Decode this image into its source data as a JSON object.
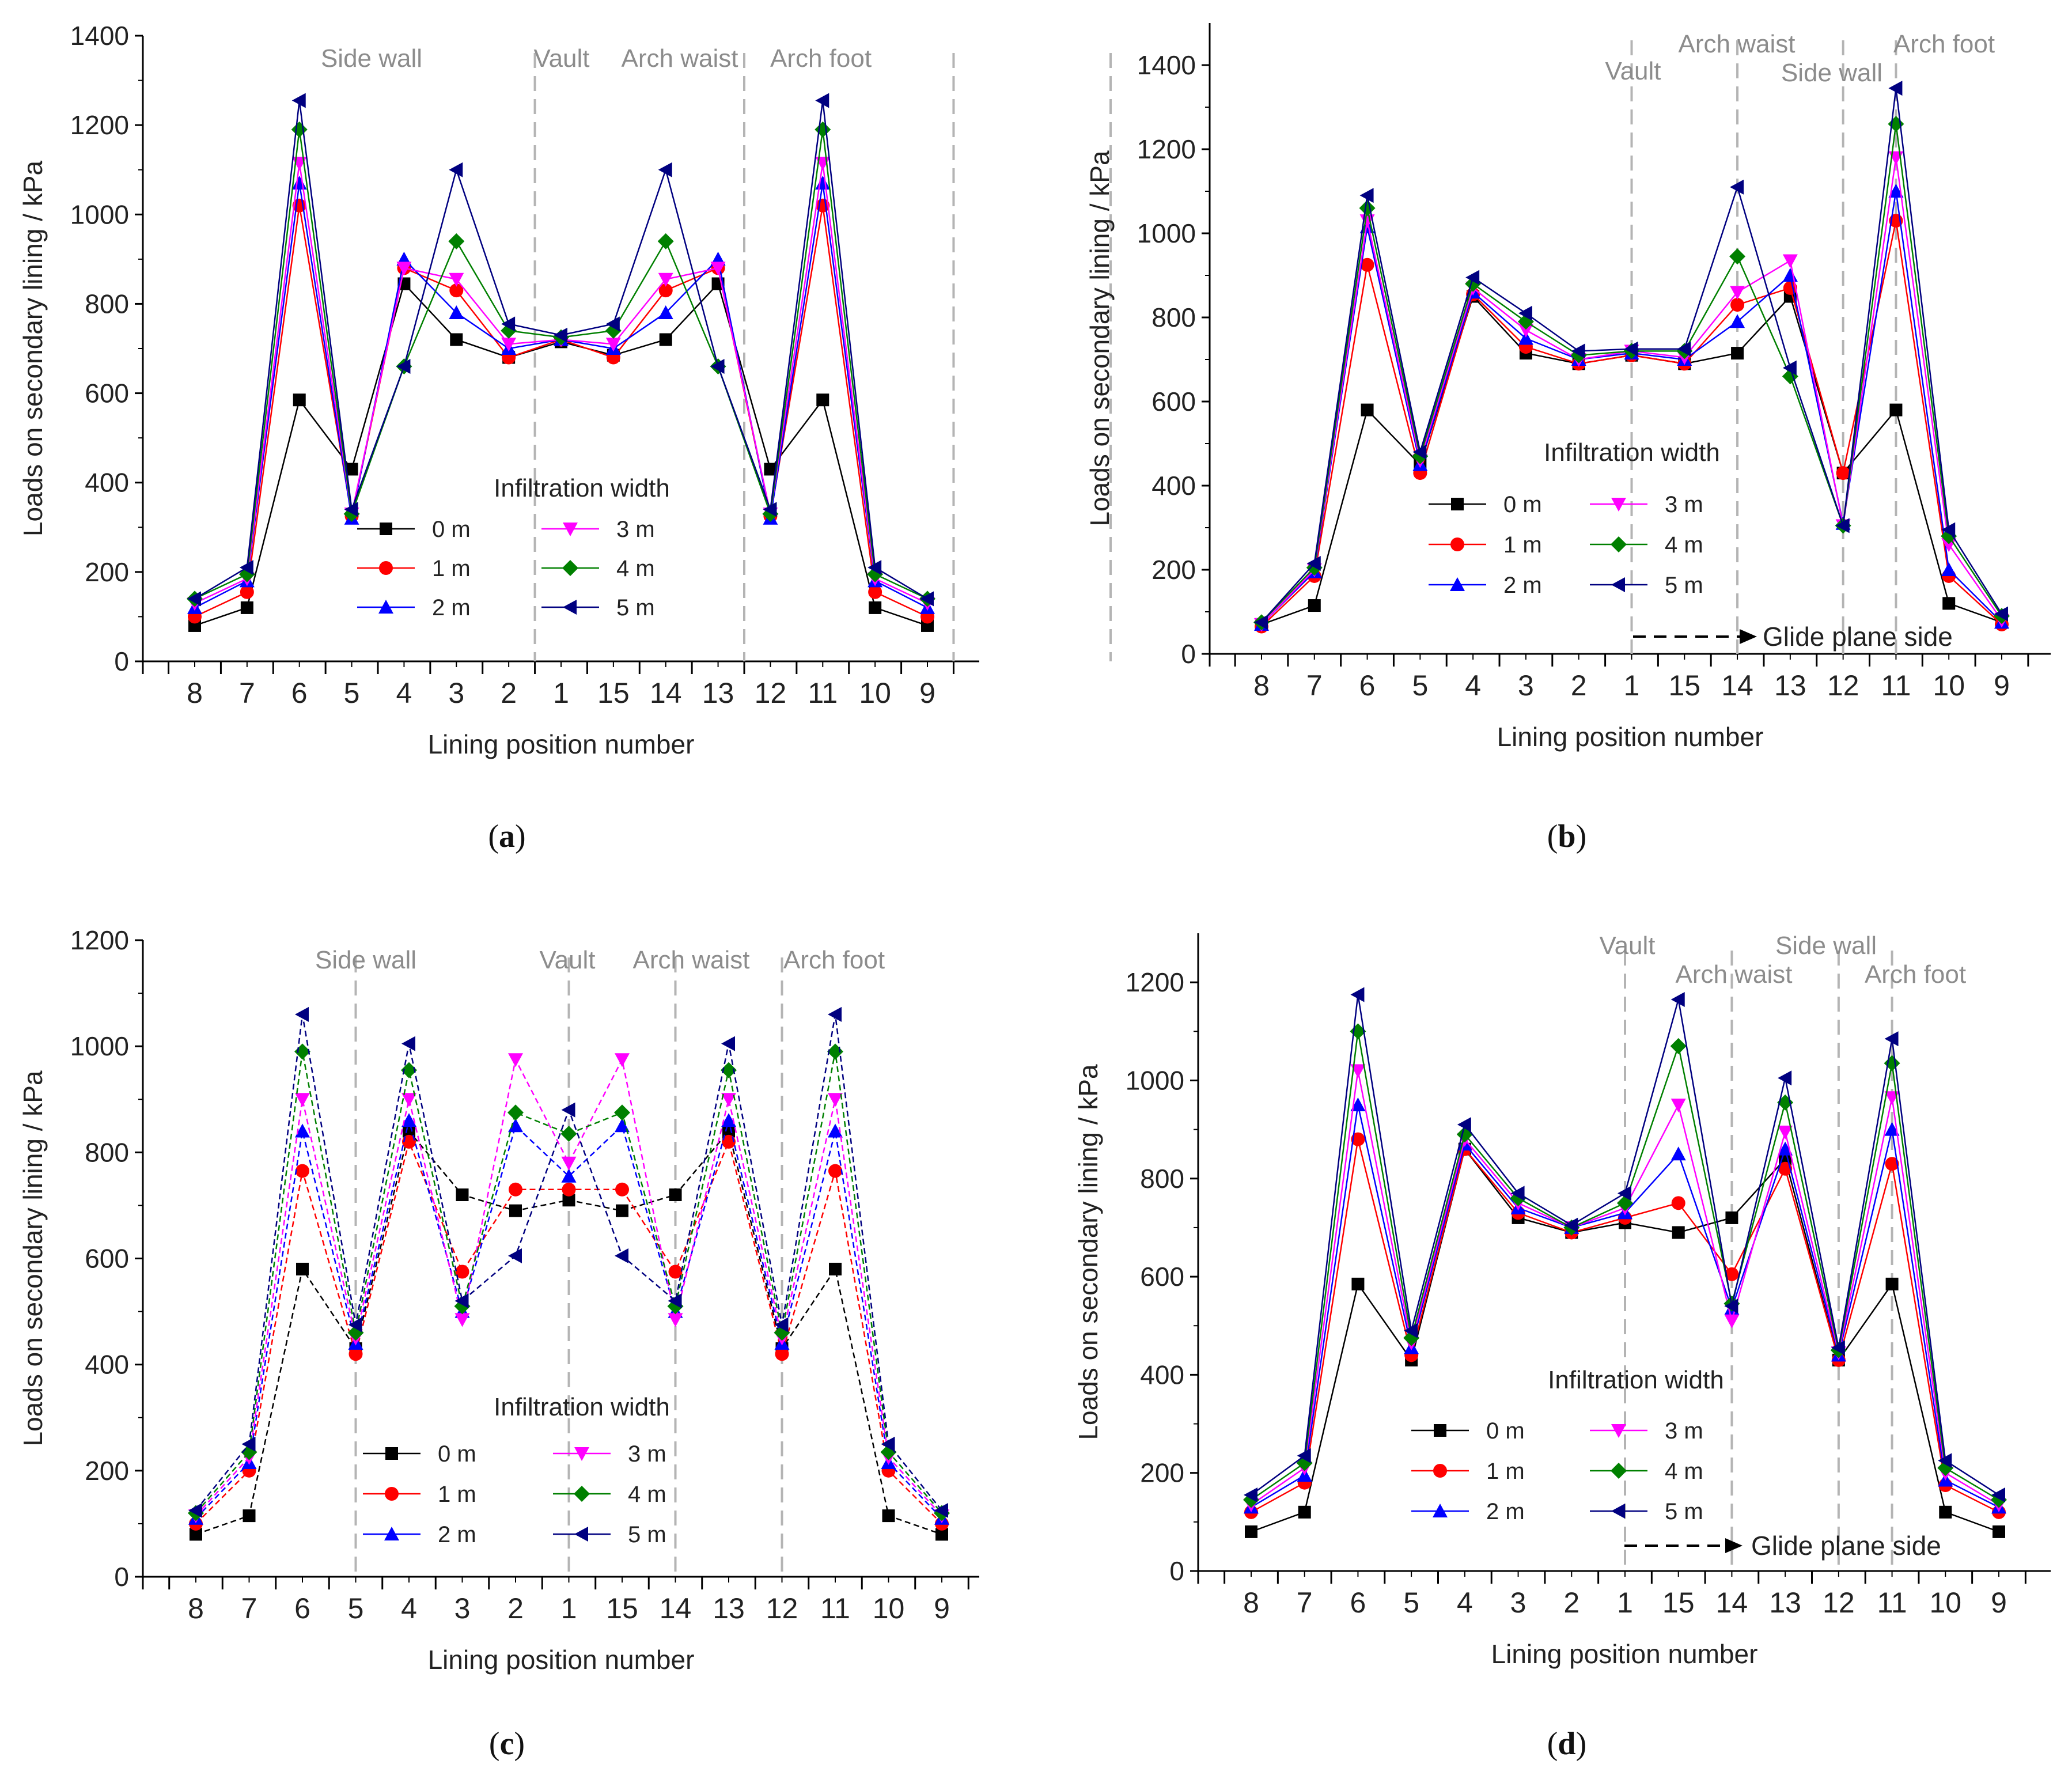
{
  "figure": {
    "x_axis_title": "Lining position number",
    "y_axis_title": "Loads on secondary lining / kPa",
    "legend_title": "Infiltration width",
    "colors": {
      "0 m": "#000000",
      "1 m": "#ff0000",
      "2 m": "#0000ff",
      "3 m": "#ff00ff",
      "4 m": "#008000",
      "5 m": "#000080",
      "guide": "#b4b4b4",
      "region_text": "#8c8c8c"
    },
    "markers": {
      "0 m": "square",
      "1 m": "circle",
      "2 m": "triangle-up",
      "3 m": "triangle-down",
      "4 m": "diamond",
      "5 m": "triangle-left"
    }
  },
  "chart_data": [
    {
      "type": "line",
      "panel": "a",
      "caption": "(a)",
      "categories": [
        "8",
        "7",
        "6",
        "5",
        "4",
        "3",
        "2",
        "1",
        "15",
        "14",
        "13",
        "12",
        "11",
        "10",
        "9"
      ],
      "ylim": [
        0,
        1400
      ],
      "yticks": [
        0,
        200,
        400,
        600,
        800,
        1000,
        1200,
        1400
      ],
      "region_labels": [
        "Side wall",
        "Vault",
        "Arch waist",
        "Arch foot"
      ],
      "annotation": "",
      "series": [
        {
          "name": "0 m",
          "values": [
            80,
            120,
            585,
            430,
            845,
            720,
            680,
            715,
            685,
            720,
            845,
            430,
            585,
            120,
            80
          ]
        },
        {
          "name": "1 m",
          "values": [
            100,
            155,
            1020,
            325,
            880,
            830,
            680,
            720,
            680,
            830,
            880,
            325,
            1020,
            155,
            100
          ]
        },
        {
          "name": "2 m",
          "values": [
            120,
            180,
            1070,
            320,
            900,
            780,
            700,
            720,
            700,
            780,
            900,
            320,
            1070,
            180,
            120
          ]
        },
        {
          "name": "3 m",
          "values": [
            130,
            185,
            1115,
            330,
            880,
            855,
            710,
            720,
            710,
            855,
            880,
            330,
            1115,
            185,
            130
          ]
        },
        {
          "name": "4 m",
          "values": [
            140,
            195,
            1190,
            330,
            660,
            940,
            740,
            725,
            740,
            940,
            660,
            330,
            1190,
            195,
            140
          ]
        },
        {
          "name": "5 m",
          "values": [
            140,
            210,
            1255,
            340,
            660,
            1100,
            755,
            730,
            755,
            1100,
            660,
            340,
            1255,
            210,
            140
          ]
        }
      ]
    },
    {
      "type": "line",
      "panel": "b",
      "caption": "(b)",
      "categories": [
        "8",
        "7",
        "6",
        "5",
        "4",
        "3",
        "2",
        "1",
        "15",
        "14",
        "13",
        "12",
        "11",
        "10",
        "9"
      ],
      "ylim": [
        0,
        1500
      ],
      "yticks": [
        0,
        200,
        400,
        600,
        800,
        1000,
        1200,
        1400
      ],
      "region_labels": [
        "Vault",
        "Arch waist",
        "Side wall",
        "Arch foot"
      ],
      "annotation": "Glide plane side",
      "series": [
        {
          "name": "0 m",
          "values": [
            70,
            115,
            580,
            450,
            850,
            715,
            690,
            710,
            690,
            715,
            850,
            430,
            580,
            120,
            75
          ]
        },
        {
          "name": "1 m",
          "values": [
            65,
            185,
            925,
            430,
            855,
            730,
            690,
            710,
            690,
            830,
            870,
            430,
            1030,
            185,
            70
          ]
        },
        {
          "name": "2 m",
          "values": [
            70,
            195,
            1015,
            450,
            860,
            750,
            700,
            715,
            700,
            790,
            900,
            310,
            1100,
            200,
            75
          ]
        },
        {
          "name": "3 m",
          "values": [
            70,
            200,
            1030,
            460,
            870,
            770,
            700,
            720,
            705,
            860,
            935,
            305,
            1180,
            260,
            80
          ]
        },
        {
          "name": "4 m",
          "values": [
            75,
            205,
            1060,
            470,
            880,
            790,
            710,
            720,
            720,
            945,
            660,
            305,
            1260,
            280,
            90
          ]
        },
        {
          "name": "5 m",
          "values": [
            75,
            215,
            1090,
            480,
            895,
            810,
            720,
            725,
            725,
            1110,
            680,
            305,
            1345,
            295,
            95
          ]
        }
      ]
    },
    {
      "type": "line",
      "panel": "c",
      "caption": "(c)",
      "categories": [
        "8",
        "7",
        "6",
        "5",
        "4",
        "3",
        "2",
        "1",
        "15",
        "14",
        "13",
        "12",
        "11",
        "10",
        "9"
      ],
      "ylim": [
        0,
        1200
      ],
      "yticks": [
        0,
        200,
        400,
        600,
        800,
        1000,
        1200
      ],
      "region_labels": [
        "Side wall",
        "Vault",
        "Arch waist",
        "Arch foot"
      ],
      "annotation": "",
      "series": [
        {
          "name": "0 m",
          "values": [
            80,
            115,
            580,
            430,
            840,
            720,
            690,
            710,
            690,
            720,
            840,
            430,
            580,
            115,
            80
          ]
        },
        {
          "name": "1 m",
          "values": [
            100,
            200,
            765,
            420,
            820,
            575,
            730,
            730,
            730,
            575,
            820,
            420,
            765,
            200,
            100
          ]
        },
        {
          "name": "2 m",
          "values": [
            110,
            215,
            840,
            440,
            860,
            500,
            850,
            755,
            850,
            500,
            860,
            440,
            840,
            215,
            110
          ]
        },
        {
          "name": "3 m",
          "values": [
            115,
            225,
            900,
            450,
            900,
            485,
            975,
            780,
            975,
            485,
            900,
            450,
            900,
            225,
            115
          ]
        },
        {
          "name": "4 m",
          "values": [
            120,
            235,
            990,
            460,
            955,
            510,
            875,
            835,
            875,
            510,
            955,
            460,
            990,
            235,
            120
          ]
        },
        {
          "name": "5 m",
          "values": [
            125,
            250,
            1060,
            475,
            1005,
            520,
            605,
            880,
            605,
            520,
            1005,
            475,
            1060,
            250,
            125
          ]
        }
      ]
    },
    {
      "type": "line",
      "panel": "d",
      "caption": "(d)",
      "categories": [
        "8",
        "7",
        "6",
        "5",
        "4",
        "3",
        "2",
        "1",
        "15",
        "14",
        "13",
        "12",
        "11",
        "10",
        "9"
      ],
      "ylim": [
        0,
        1300
      ],
      "yticks": [
        0,
        200,
        400,
        600,
        800,
        1000,
        1200
      ],
      "region_labels": [
        "Vault",
        "Arch waist",
        "Side wall",
        "Arch foot"
      ],
      "annotation": "Glide plane side",
      "series": [
        {
          "name": "0 m",
          "values": [
            80,
            120,
            585,
            430,
            860,
            720,
            690,
            710,
            690,
            720,
            840,
            430,
            585,
            120,
            80
          ]
        },
        {
          "name": "1 m",
          "values": [
            120,
            180,
            880,
            440,
            860,
            730,
            690,
            720,
            750,
            605,
            820,
            430,
            830,
            175,
            120
          ]
        },
        {
          "name": "2 m",
          "values": [
            130,
            195,
            950,
            455,
            870,
            740,
            700,
            730,
            850,
            535,
            860,
            440,
            900,
            185,
            130
          ]
        },
        {
          "name": "3 m",
          "values": [
            135,
            210,
            1020,
            465,
            880,
            750,
            700,
            740,
            950,
            510,
            895,
            445,
            965,
            200,
            135
          ]
        },
        {
          "name": "4 m",
          "values": [
            145,
            220,
            1100,
            475,
            890,
            760,
            700,
            750,
            1070,
            545,
            955,
            450,
            1035,
            210,
            145
          ]
        },
        {
          "name": "5 m",
          "values": [
            155,
            235,
            1175,
            490,
            910,
            770,
            705,
            770,
            1165,
            540,
            1005,
            455,
            1085,
            225,
            155
          ]
        }
      ]
    }
  ]
}
